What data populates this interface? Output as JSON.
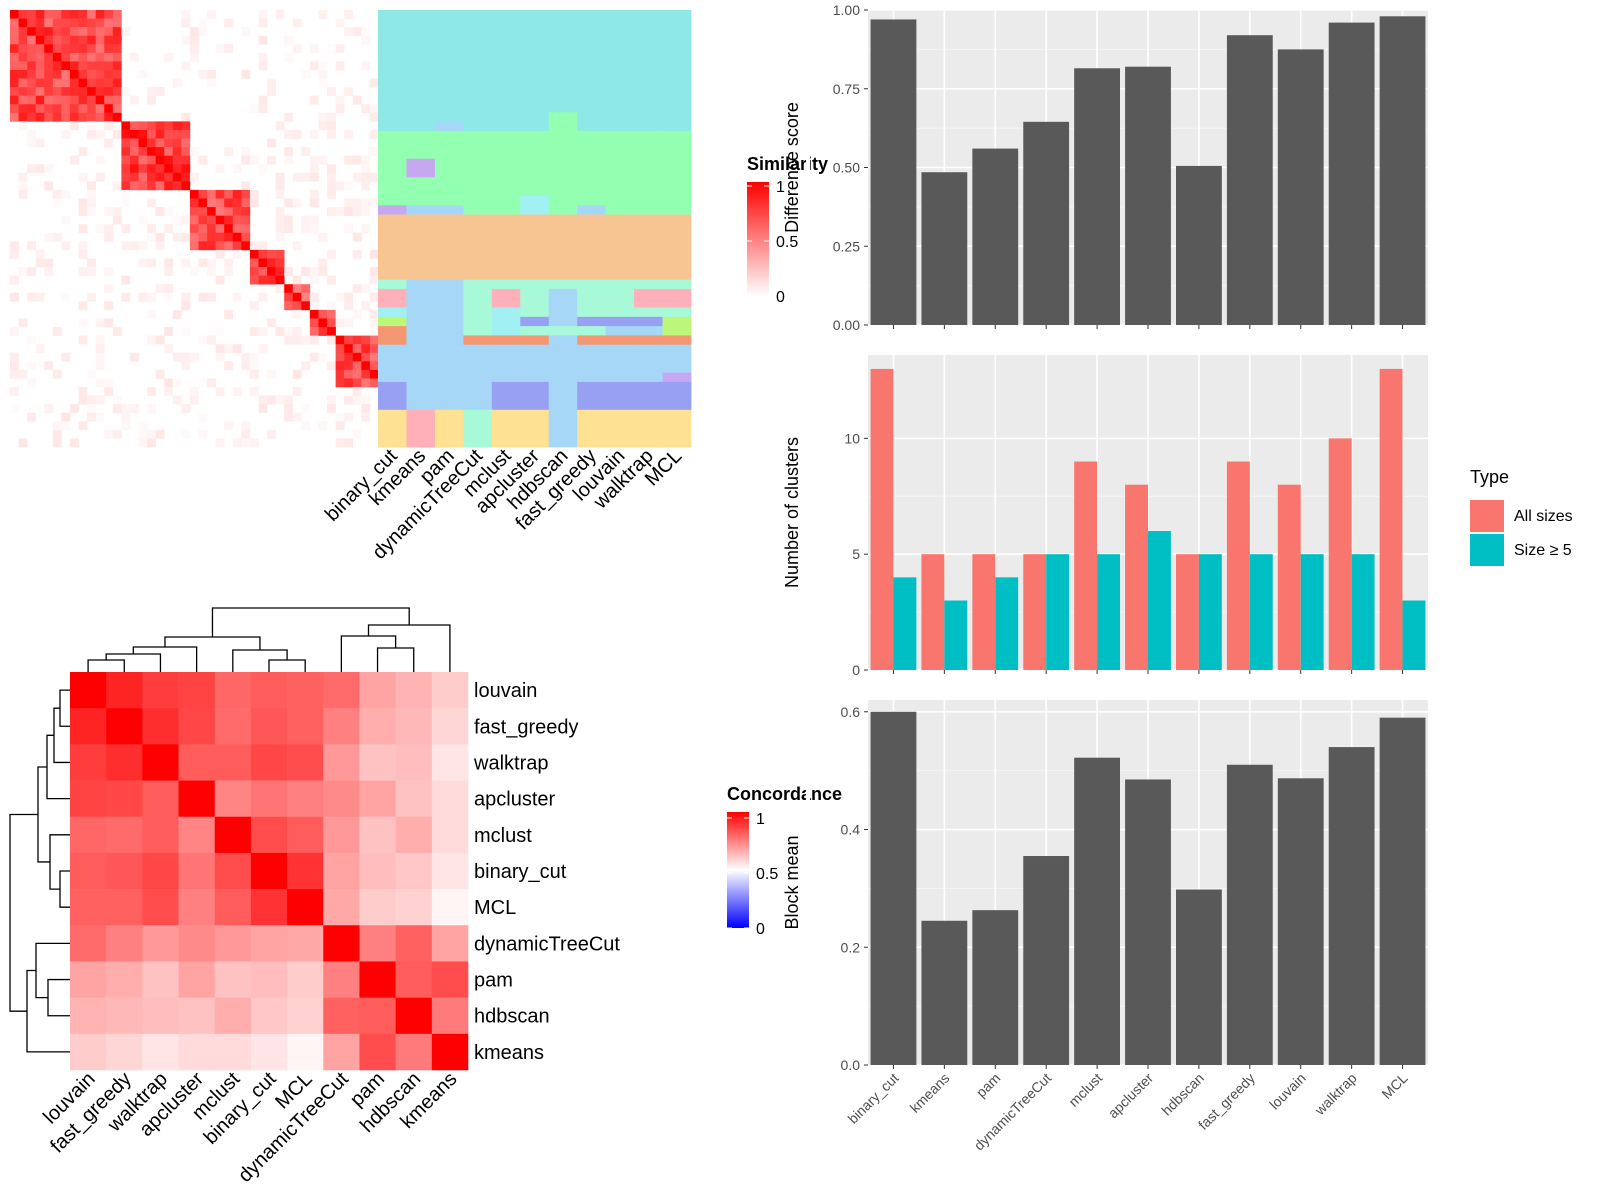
{
  "chart_data": [
    {
      "id": "similarity_heatmap",
      "type": "heatmap",
      "title": "",
      "legend_title": "Similarity",
      "legend_ticks": [
        "0",
        "0.5",
        "1"
      ],
      "legend_colors": [
        "#FFFFFF",
        "#FF0000"
      ],
      "column_labels": [
        "binary_cut",
        "kmeans",
        "pam",
        "dynamicTreeCut",
        "mclust",
        "apcluster",
        "hdbscan",
        "fast_greedy",
        "louvain",
        "walktrap",
        "MCL"
      ],
      "blocks": [
        {
          "group": 1,
          "size": 13,
          "sim": [
            0.72,
            0.12
          ]
        },
        {
          "group": 2,
          "size": 8,
          "sim": [
            0.75,
            0.05
          ]
        },
        {
          "group": 3,
          "size": 7,
          "sim": [
            0.7,
            0.12
          ]
        },
        {
          "group": 4,
          "size": 4,
          "sim": [
            0.7,
            0.1
          ]
        },
        {
          "group": 5,
          "size": 3,
          "sim": [
            0.65,
            0.1
          ]
        },
        {
          "group": 6,
          "size": 3,
          "sim": [
            0.65,
            0.1
          ]
        },
        {
          "group": 7,
          "size": 6,
          "sim": [
            0.7,
            0.12
          ]
        },
        {
          "group": 8,
          "size": 4,
          "sim": [
            0.75,
            0.1
          ]
        },
        {
          "group": 9,
          "size": 3,
          "sim": [
            0.85,
            0.1
          ]
        }
      ],
      "cluster_colors": [
        "#8EE8E8",
        "#93FFB0",
        "#C6A8F0",
        "#F7C592",
        "#A7D7F7",
        "#FFB0B8",
        "#A8F9D8",
        "#A0F0F4",
        "#BDF77A",
        "#F49871",
        "#98A0F4",
        "#FFE194"
      ],
      "cluster_assignments": [
        [
          0,
          0,
          0,
          0,
          0,
          0,
          0,
          0,
          0,
          0,
          0
        ],
        [
          0,
          0,
          0,
          0,
          0,
          0,
          0,
          0,
          0,
          0,
          0
        ],
        [
          0,
          0,
          0,
          0,
          0,
          0,
          0,
          0,
          0,
          0,
          0
        ],
        [
          0,
          0,
          0,
          0,
          0,
          0,
          0,
          0,
          0,
          0,
          0
        ],
        [
          0,
          0,
          0,
          0,
          0,
          0,
          0,
          0,
          0,
          0,
          0
        ],
        [
          0,
          0,
          0,
          0,
          0,
          0,
          0,
          0,
          0,
          0,
          0
        ],
        [
          0,
          0,
          0,
          0,
          0,
          0,
          0,
          0,
          0,
          0,
          0
        ],
        [
          0,
          0,
          0,
          0,
          0,
          0,
          0,
          0,
          0,
          0,
          0
        ],
        [
          0,
          0,
          0,
          0,
          0,
          0,
          0,
          0,
          0,
          0,
          0
        ],
        [
          0,
          0,
          0,
          0,
          0,
          0,
          0,
          0,
          0,
          0,
          0
        ],
        [
          0,
          0,
          0,
          0,
          0,
          0,
          0,
          0,
          0,
          0,
          0
        ],
        [
          0,
          0,
          0,
          0,
          0,
          0,
          1,
          0,
          0,
          0,
          0
        ],
        [
          0,
          0,
          4,
          0,
          0,
          0,
          1,
          0,
          0,
          0,
          0
        ],
        [
          1,
          1,
          1,
          1,
          1,
          1,
          1,
          1,
          1,
          1,
          1
        ],
        [
          1,
          1,
          1,
          1,
          1,
          1,
          1,
          1,
          1,
          1,
          1
        ],
        [
          1,
          1,
          1,
          1,
          1,
          1,
          1,
          1,
          1,
          1,
          1
        ],
        [
          1,
          2,
          1,
          1,
          1,
          1,
          1,
          1,
          1,
          1,
          1
        ],
        [
          1,
          2,
          1,
          1,
          1,
          1,
          1,
          1,
          1,
          1,
          1
        ],
        [
          1,
          1,
          1,
          1,
          1,
          1,
          1,
          1,
          1,
          1,
          1
        ],
        [
          1,
          1,
          1,
          1,
          1,
          1,
          1,
          1,
          1,
          1,
          1
        ],
        [
          1,
          1,
          1,
          1,
          1,
          7,
          1,
          1,
          1,
          1,
          1
        ],
        [
          2,
          4,
          4,
          1,
          1,
          7,
          1,
          4,
          1,
          1,
          1
        ],
        [
          3,
          3,
          3,
          3,
          3,
          3,
          3,
          3,
          3,
          3,
          3
        ],
        [
          3,
          3,
          3,
          3,
          3,
          3,
          3,
          3,
          3,
          3,
          3
        ],
        [
          3,
          3,
          3,
          3,
          3,
          3,
          3,
          3,
          3,
          3,
          3
        ],
        [
          3,
          3,
          3,
          3,
          3,
          3,
          3,
          3,
          3,
          3,
          3
        ],
        [
          3,
          3,
          3,
          3,
          3,
          3,
          3,
          3,
          3,
          3,
          3
        ],
        [
          3,
          3,
          3,
          3,
          3,
          3,
          3,
          3,
          3,
          3,
          3
        ],
        [
          3,
          3,
          3,
          3,
          3,
          3,
          3,
          3,
          3,
          3,
          3
        ],
        [
          6,
          4,
          4,
          6,
          6,
          6,
          6,
          6,
          6,
          6,
          6
        ],
        [
          5,
          4,
          4,
          6,
          5,
          6,
          4,
          6,
          6,
          5,
          5
        ],
        [
          5,
          4,
          4,
          6,
          5,
          6,
          4,
          6,
          6,
          5,
          5
        ],
        [
          7,
          4,
          4,
          6,
          7,
          6,
          4,
          6,
          6,
          6,
          6
        ],
        [
          8,
          4,
          4,
          6,
          7,
          10,
          4,
          10,
          10,
          10,
          8
        ],
        [
          9,
          4,
          4,
          6,
          7,
          6,
          6,
          6,
          4,
          4,
          8
        ],
        [
          9,
          4,
          4,
          9,
          9,
          9,
          4,
          9,
          9,
          9,
          9
        ],
        [
          4,
          4,
          4,
          4,
          4,
          4,
          4,
          4,
          4,
          4,
          4
        ],
        [
          4,
          4,
          4,
          4,
          4,
          4,
          4,
          4,
          4,
          4,
          4
        ],
        [
          4,
          4,
          4,
          4,
          4,
          4,
          4,
          4,
          4,
          4,
          4
        ],
        [
          4,
          4,
          4,
          4,
          4,
          4,
          4,
          4,
          4,
          4,
          2
        ],
        [
          10,
          4,
          4,
          4,
          10,
          10,
          4,
          10,
          10,
          10,
          10
        ],
        [
          10,
          4,
          4,
          4,
          10,
          10,
          4,
          10,
          10,
          10,
          10
        ],
        [
          10,
          4,
          4,
          4,
          10,
          10,
          4,
          10,
          10,
          10,
          10
        ],
        [
          11,
          5,
          11,
          6,
          11,
          11,
          4,
          11,
          11,
          11,
          11
        ],
        [
          11,
          5,
          11,
          6,
          11,
          11,
          4,
          11,
          11,
          11,
          11
        ],
        [
          11,
          5,
          11,
          6,
          11,
          11,
          4,
          11,
          11,
          11,
          11
        ],
        [
          11,
          5,
          11,
          6,
          11,
          11,
          4,
          11,
          11,
          11,
          11
        ]
      ]
    },
    {
      "id": "concordance_heatmap",
      "type": "heatmap",
      "title": "",
      "legend_title": "Concordance",
      "legend_ticks": [
        "0",
        "0.5",
        "1"
      ],
      "legend_colors": [
        "#0000FF",
        "#FFFFFF",
        "#FF0000"
      ],
      "row_labels": [
        "louvain",
        "fast_greedy",
        "walktrap",
        "apcluster",
        "mclust",
        "binary_cut",
        "MCL",
        "dynamicTreeCut",
        "pam",
        "hdbscan",
        "kmeans"
      ],
      "column_labels": [
        "louvain",
        "fast_greedy",
        "walktrap",
        "apcluster",
        "mclust",
        "binary_cut",
        "MCL",
        "dynamicTreeCut",
        "pam",
        "hdbscan",
        "kmeans"
      ],
      "values": [
        [
          1.0,
          0.93,
          0.88,
          0.87,
          0.8,
          0.82,
          0.81,
          0.79,
          0.68,
          0.65,
          0.6
        ],
        [
          0.93,
          1.0,
          0.91,
          0.86,
          0.79,
          0.83,
          0.81,
          0.75,
          0.66,
          0.64,
          0.58
        ],
        [
          0.88,
          0.91,
          1.0,
          0.82,
          0.82,
          0.86,
          0.85,
          0.7,
          0.62,
          0.63,
          0.55
        ],
        [
          0.87,
          0.86,
          0.82,
          1.0,
          0.74,
          0.77,
          0.75,
          0.73,
          0.68,
          0.62,
          0.57
        ],
        [
          0.8,
          0.79,
          0.82,
          0.74,
          1.0,
          0.85,
          0.82,
          0.7,
          0.62,
          0.66,
          0.57
        ],
        [
          0.82,
          0.83,
          0.86,
          0.77,
          0.85,
          1.0,
          0.9,
          0.68,
          0.63,
          0.61,
          0.55
        ],
        [
          0.81,
          0.81,
          0.85,
          0.75,
          0.82,
          0.9,
          1.0,
          0.67,
          0.6,
          0.59,
          0.52
        ],
        [
          0.79,
          0.75,
          0.7,
          0.73,
          0.7,
          0.68,
          0.67,
          1.0,
          0.75,
          0.81,
          0.68
        ],
        [
          0.68,
          0.66,
          0.62,
          0.68,
          0.62,
          0.63,
          0.6,
          0.75,
          1.0,
          0.82,
          0.85
        ],
        [
          0.65,
          0.64,
          0.63,
          0.62,
          0.66,
          0.61,
          0.59,
          0.81,
          0.82,
          1.0,
          0.76
        ],
        [
          0.6,
          0.58,
          0.55,
          0.57,
          0.57,
          0.55,
          0.52,
          0.68,
          0.85,
          0.76,
          1.0
        ]
      ]
    },
    {
      "id": "difference_score",
      "type": "bar",
      "title": "",
      "xlabel": "",
      "ylabel": "Difference score",
      "categories": [
        "binary_cut",
        "kmeans",
        "pam",
        "dynamicTreeCut",
        "mclust",
        "apcluster",
        "hdbscan",
        "fast_greedy",
        "louvain",
        "walktrap",
        "MCL"
      ],
      "values": [
        0.97,
        0.485,
        0.56,
        0.645,
        0.815,
        0.82,
        0.505,
        0.92,
        0.875,
        0.96,
        0.98
      ],
      "ylim": [
        0,
        1.0
      ],
      "yticks": [
        "0.00",
        "0.25",
        "0.50",
        "0.75",
        "1.00"
      ],
      "bar_color": "#595959"
    },
    {
      "id": "number_of_clusters",
      "type": "bar",
      "title": "",
      "xlabel": "",
      "ylabel": "Number of clusters",
      "categories": [
        "binary_cut",
        "kmeans",
        "pam",
        "dynamicTreeCut",
        "mclust",
        "apcluster",
        "hdbscan",
        "fast_greedy",
        "louvain",
        "walktrap",
        "MCL"
      ],
      "series": [
        {
          "name": "All sizes",
          "color": "#F8766D",
          "values": [
            13,
            5,
            5,
            5,
            9,
            8,
            5,
            9,
            8,
            10,
            13
          ]
        },
        {
          "name": "Size ≥ 5",
          "color": "#00BFC4",
          "values": [
            4,
            3,
            4,
            5,
            5,
            6,
            5,
            5,
            5,
            5,
            3
          ]
        }
      ],
      "ylim": [
        0,
        13.6
      ],
      "yticks": [
        "0",
        "5",
        "10"
      ],
      "legend_title": "Type",
      "legend_position": "right"
    },
    {
      "id": "block_mean",
      "type": "bar",
      "title": "",
      "xlabel": "",
      "ylabel": "Block mean",
      "categories": [
        "binary_cut",
        "kmeans",
        "pam",
        "dynamicTreeCut",
        "mclust",
        "apcluster",
        "hdbscan",
        "fast_greedy",
        "louvain",
        "walktrap",
        "MCL"
      ],
      "values": [
        0.6,
        0.245,
        0.263,
        0.355,
        0.522,
        0.485,
        0.298,
        0.51,
        0.487,
        0.54,
        0.59
      ],
      "ylim": [
        0,
        0.62
      ],
      "yticks": [
        "0.0",
        "0.2",
        "0.4",
        "0.6"
      ],
      "bar_color": "#595959"
    }
  ]
}
